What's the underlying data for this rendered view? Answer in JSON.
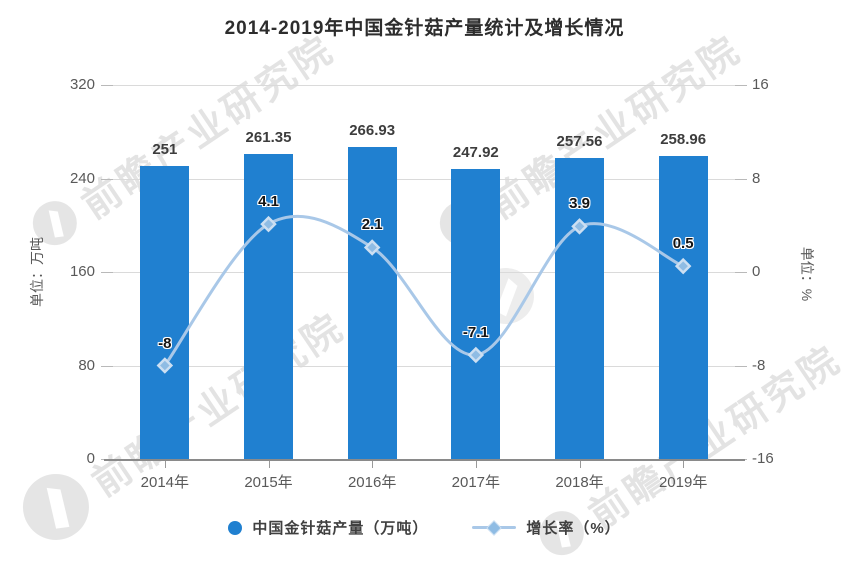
{
  "title": "2014-2019年中国金针菇产量统计及增长情况",
  "watermark": {
    "text": "前瞻产业研究院"
  },
  "colors": {
    "bar": "#2080D0",
    "line": "#A9C8E8",
    "marker_fill": "#8FBCE4",
    "marker_stroke": "#CCDFF2",
    "grid": "#DADADA",
    "axis": "#8A8A8A",
    "watermark": "#C9C9C9"
  },
  "chart_data": {
    "type": "bar",
    "subtype": "bar-line combo, dual axis",
    "title": "2014-2019年中国金针菇产量统计及增长情况",
    "categories": [
      "2014年",
      "2015年",
      "2016年",
      "2017年",
      "2018年",
      "2019年"
    ],
    "series": [
      {
        "name": "中国金针菇产量（万吨）",
        "type": "bar",
        "axis": "left",
        "values": [
          251,
          261.35,
          266.93,
          247.92,
          257.56,
          258.96
        ],
        "labels": [
          "251",
          "261.35",
          "266.93",
          "247.92",
          "257.56",
          "258.96"
        ]
      },
      {
        "name": "增长率（%）",
        "type": "line",
        "smooth": true,
        "axis": "right",
        "values": [
          -8,
          4.1,
          2.1,
          -7.1,
          3.9,
          0.5
        ],
        "labels": [
          "-8",
          "4.1",
          "2.1",
          "-7.1",
          "3.9",
          "0.5"
        ]
      }
    ],
    "left_axis": {
      "name": "单位：万吨",
      "min": 0,
      "max": 320,
      "ticks": [
        0,
        80,
        160,
        240,
        320
      ]
    },
    "right_axis": {
      "name": "单位：%",
      "min": -16,
      "max": 16,
      "ticks": [
        -16,
        -8,
        0,
        8,
        16
      ]
    },
    "grid": true,
    "legend_position": "bottom",
    "legend": [
      "中国金针菇产量（万吨）",
      "增长率（%）"
    ]
  }
}
